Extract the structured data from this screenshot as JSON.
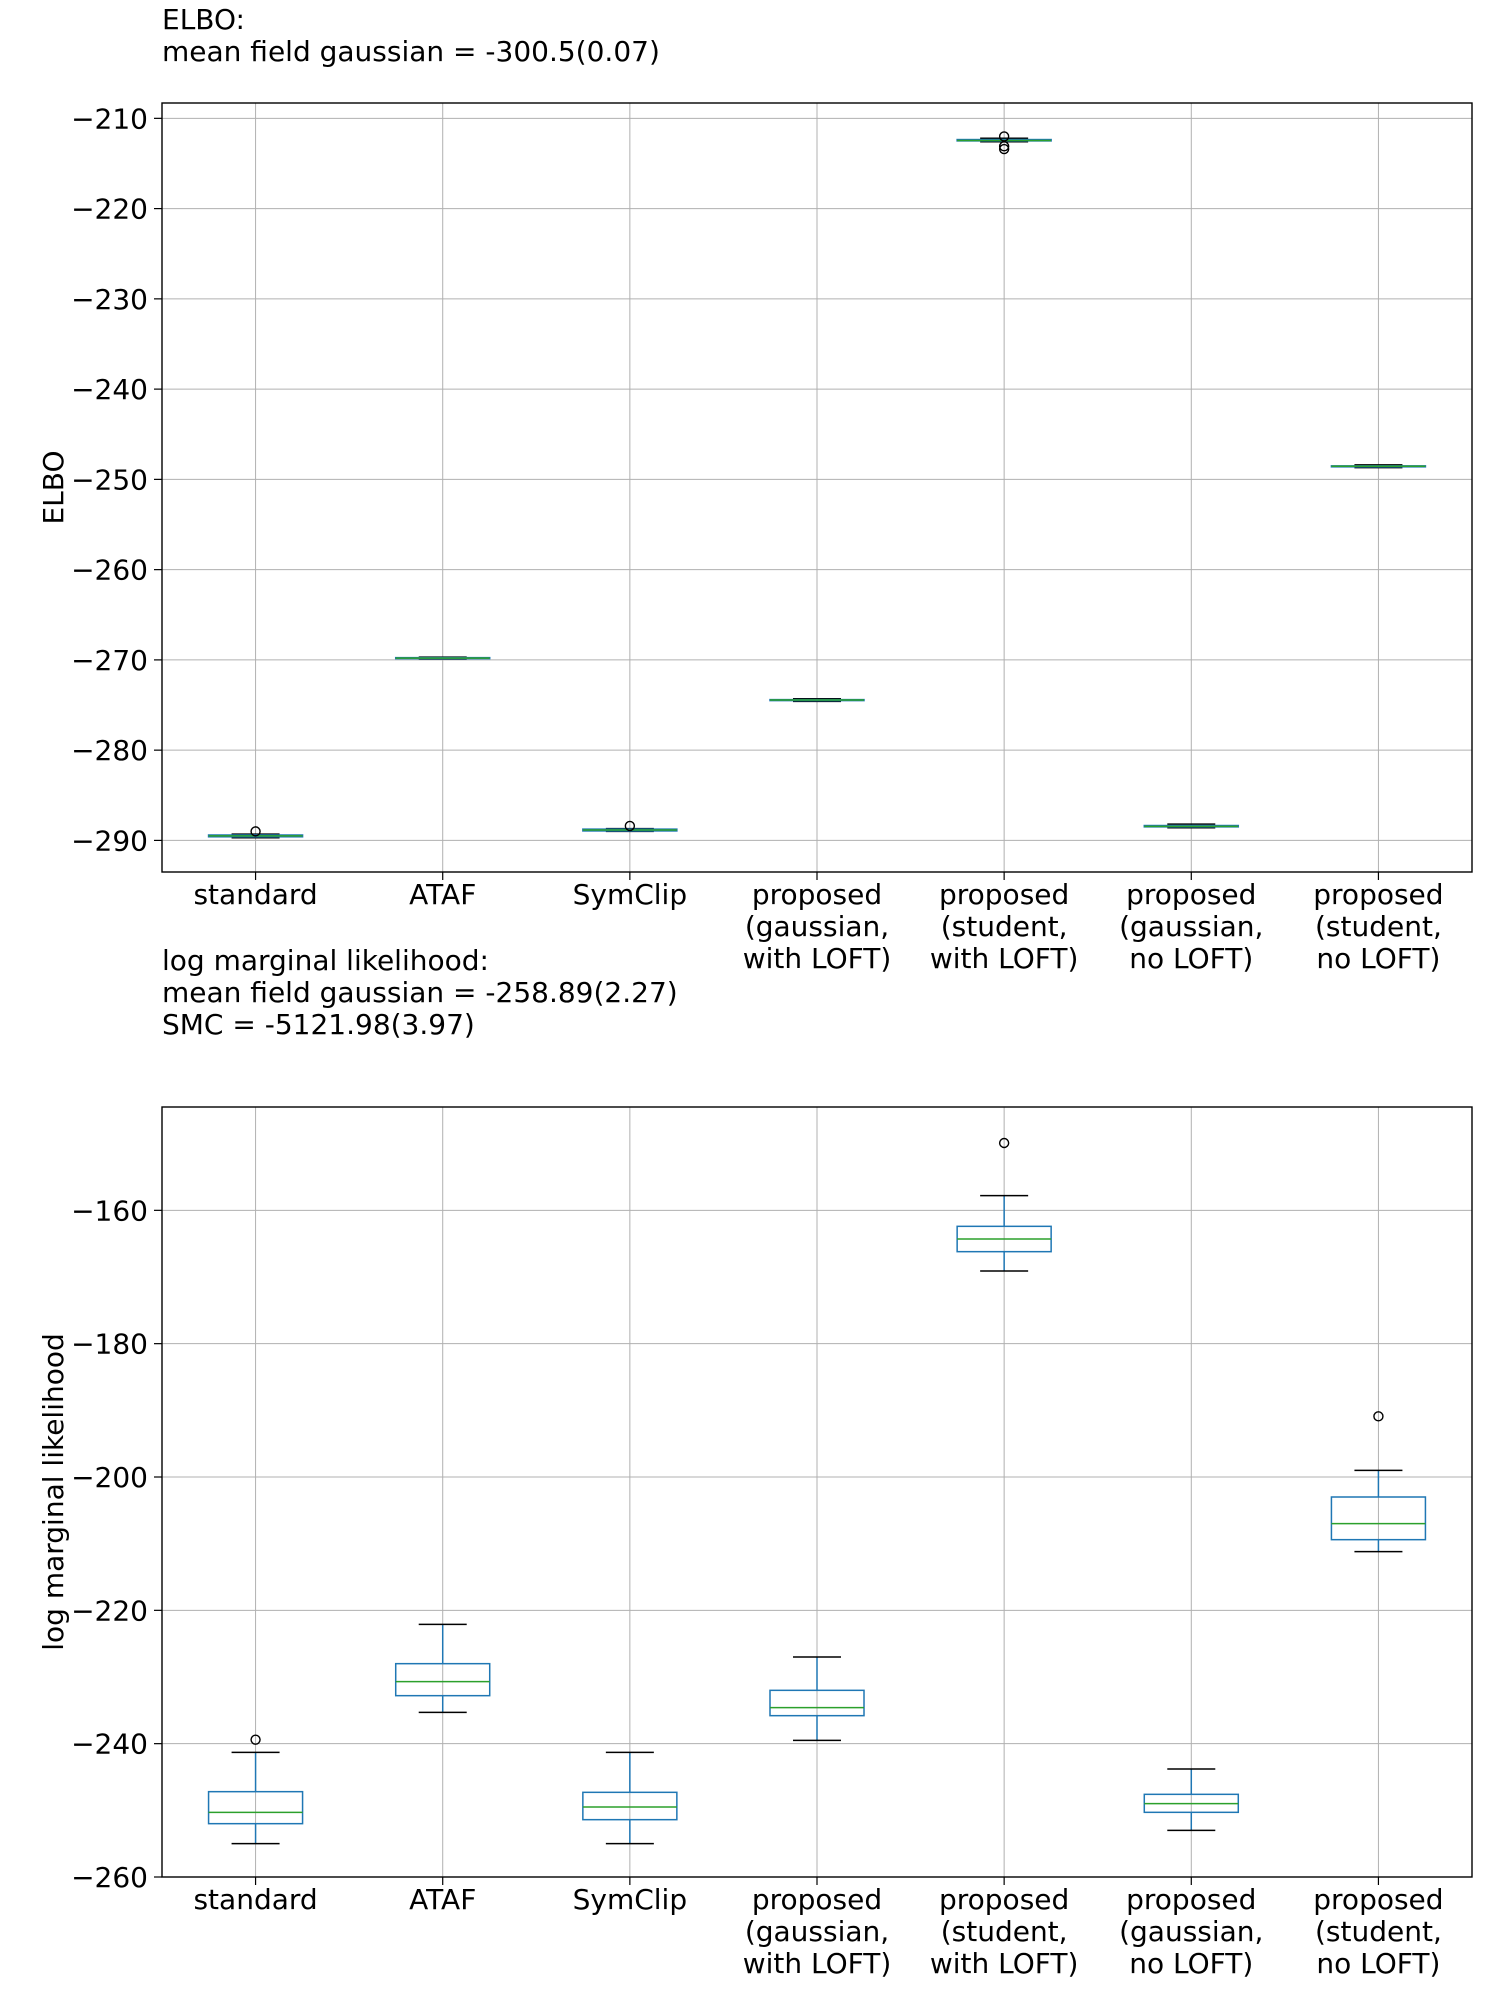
{
  "chart_data": [
    {
      "type": "box",
      "title_lines": [
        "ELBO:",
        "mean field gaussian = -300.5(0.07)"
      ],
      "xlabel": "",
      "ylabel": "ELBO",
      "ylim": [
        -293.5,
        -208.3
      ],
      "yticks": [
        -290,
        -280,
        -270,
        -260,
        -250,
        -240,
        -230,
        -220,
        -210
      ],
      "ytick_labels": [
        "−290",
        "−280",
        "−270",
        "−260",
        "−250",
        "−240",
        "−230",
        "−220",
        "−210"
      ],
      "grid": true,
      "categories": [
        [
          "standard"
        ],
        [
          "ATAF"
        ],
        [
          "SymClip"
        ],
        [
          "proposed",
          "(gaussian,",
          "with LOFT)"
        ],
        [
          "proposed",
          "(student,",
          "with LOFT)"
        ],
        [
          "proposed",
          "(gaussian,",
          "no LOFT)"
        ],
        [
          "proposed",
          "(student,",
          "no LOFT)"
        ]
      ],
      "boxes": [
        {
          "whislo": -289.7,
          "q1": -289.6,
          "med": -289.5,
          "q3": -289.4,
          "whishi": -289.3,
          "fliers": [
            -289.0
          ]
        },
        {
          "whislo": -269.9,
          "q1": -269.85,
          "med": -269.8,
          "q3": -269.75,
          "whishi": -269.7,
          "fliers": []
        },
        {
          "whislo": -289.0,
          "q1": -288.95,
          "med": -288.85,
          "q3": -288.75,
          "whishi": -288.7,
          "fliers": [
            -288.4
          ]
        },
        {
          "whislo": -274.6,
          "q1": -274.5,
          "med": -274.45,
          "q3": -274.4,
          "whishi": -274.3,
          "fliers": []
        },
        {
          "whislo": -212.6,
          "q1": -212.5,
          "med": -212.45,
          "q3": -212.35,
          "whishi": -212.2,
          "fliers": [
            -213.4,
            -213.1,
            -212.0
          ]
        },
        {
          "whislo": -288.6,
          "q1": -288.5,
          "med": -288.45,
          "q3": -288.35,
          "whishi": -288.2,
          "fliers": []
        },
        {
          "whislo": -248.7,
          "q1": -248.6,
          "med": -248.55,
          "q3": -248.5,
          "whishi": -248.4,
          "fliers": []
        }
      ]
    },
    {
      "type": "box",
      "title_lines": [
        "log marginal likelihood:",
        "mean field gaussian = -258.89(2.27)",
        "SMC = -5121.98(3.97)"
      ],
      "xlabel": "",
      "ylabel": "log marginal likelihood",
      "ylim": [
        -260,
        -144.5
      ],
      "yticks": [
        -260,
        -240,
        -220,
        -200,
        -180,
        -160
      ],
      "ytick_labels": [
        "−260",
        "−240",
        "−220",
        "−200",
        "−180",
        "−160"
      ],
      "grid": true,
      "categories": [
        [
          "standard"
        ],
        [
          "ATAF"
        ],
        [
          "SymClip"
        ],
        [
          "proposed",
          "(gaussian,",
          "with LOFT)"
        ],
        [
          "proposed",
          "(student,",
          "with LOFT)"
        ],
        [
          "proposed",
          "(gaussian,",
          "no LOFT)"
        ],
        [
          "proposed",
          "(student,",
          "no LOFT)"
        ]
      ],
      "boxes": [
        {
          "whislo": -255.0,
          "q1": -252.0,
          "med": -250.3,
          "q3": -247.2,
          "whishi": -241.3,
          "fliers": [
            -239.4
          ]
        },
        {
          "whislo": -235.3,
          "q1": -232.8,
          "med": -230.7,
          "q3": -228.0,
          "whishi": -222.1,
          "fliers": []
        },
        {
          "whislo": -255.0,
          "q1": -251.4,
          "med": -249.5,
          "q3": -247.3,
          "whishi": -241.3,
          "fliers": []
        },
        {
          "whislo": -239.5,
          "q1": -235.8,
          "med": -234.6,
          "q3": -232.0,
          "whishi": -227.0,
          "fliers": []
        },
        {
          "whislo": -169.1,
          "q1": -166.2,
          "med": -164.3,
          "q3": -162.4,
          "whishi": -157.8,
          "fliers": [
            -149.9
          ]
        },
        {
          "whislo": -253.0,
          "q1": -250.3,
          "med": -249.0,
          "q3": -247.6,
          "whishi": -243.8,
          "fliers": []
        },
        {
          "whislo": -211.2,
          "q1": -209.4,
          "med": -207.0,
          "q3": -203.0,
          "whishi": -199.0,
          "fliers": [
            -190.9
          ]
        }
      ]
    }
  ]
}
